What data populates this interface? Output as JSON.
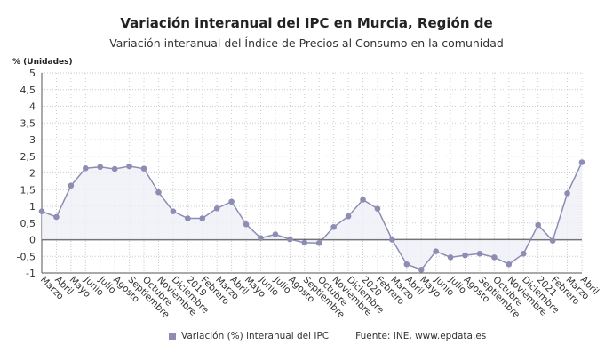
{
  "chart_data": {
    "type": "line",
    "title": "Variación interanual del IPC en Murcia, Región de",
    "subtitle": "Variación interanual del Índice de Precios al Consumo en la comunidad",
    "ylabel": "% (Unidades)",
    "ylim": [
      -1,
      5
    ],
    "yticks": [
      "5",
      "4,5",
      "4",
      "3,5",
      "3",
      "2,5",
      "2",
      "1,5",
      "1",
      "0,5",
      "0",
      "-0,5",
      "-1"
    ],
    "grid": true,
    "legend_position": "bottom",
    "categories": [
      "Marzo",
      "Abril",
      "Mayo",
      "Junio",
      "Julio",
      "Agosto",
      "Septiembre",
      "Octubre",
      "Noviembre",
      "Diciembre",
      "2019",
      "Febrero",
      "Marzo",
      "Abril",
      "Mayo",
      "Junio",
      "Julio",
      "Agosto",
      "Septiembre",
      "Octubre",
      "Noviembre",
      "Diciembre",
      "2020",
      "Febrero",
      "Marzo",
      "Abril",
      "Mayo",
      "Junio",
      "Julio",
      "Agosto",
      "Septiembre",
      "Octubre",
      "Noviembre",
      "Diciembre",
      "2021",
      "Febrero",
      "Marzo",
      "Abril"
    ],
    "series": [
      {
        "name": "Variación (%) interanual del IPC",
        "color": "#8d8db3",
        "values": [
          0.85,
          0.68,
          1.62,
          2.14,
          2.18,
          2.12,
          2.2,
          2.13,
          1.42,
          0.85,
          0.64,
          0.64,
          0.94,
          1.14,
          0.46,
          0.05,
          0.16,
          0.01,
          -0.09,
          -0.1,
          0.38,
          0.7,
          1.2,
          0.93,
          0.0,
          -0.74,
          -0.9,
          -0.35,
          -0.53,
          -0.47,
          -0.42,
          -0.53,
          -0.74,
          -0.42,
          0.44,
          -0.03,
          1.39,
          2.32
        ]
      }
    ],
    "source": "Fuente: INE, www.epdata.es"
  }
}
